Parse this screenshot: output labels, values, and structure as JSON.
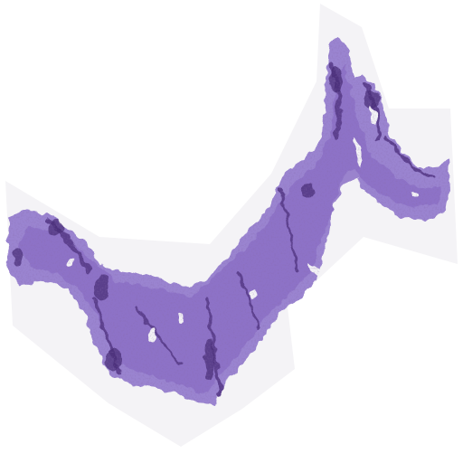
{
  "image": {
    "kind": "histology-slide-thumbnail",
    "stain": "H&E",
    "colors": {
      "background": "#ffffff",
      "slide_region": "#f5f4f7",
      "tissue_light": "#a58fd6",
      "tissue_mid": "#8a6fc8",
      "tissue_dark": "#5b3f8e",
      "tissue_deep": "#3f2766"
    }
  }
}
